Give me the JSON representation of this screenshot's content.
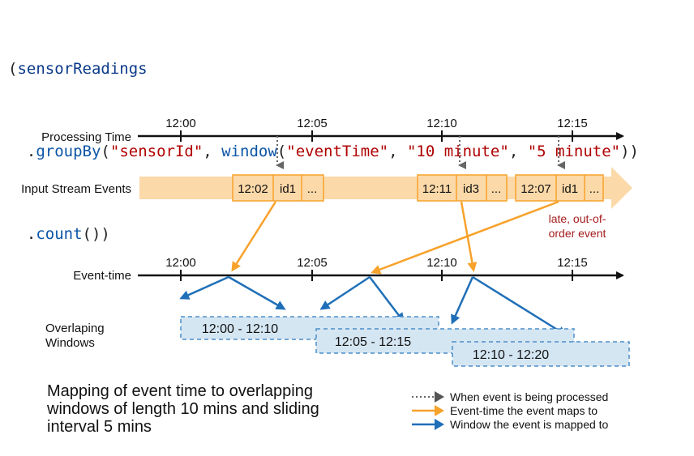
{
  "code": {
    "line1": {
      "open": "(",
      "obj": "sensorReadings"
    },
    "line2": {
      "dot": ".",
      "fn": "groupBy",
      "p1": "(",
      "arg1": "\"sensorId\"",
      "comma": ", ",
      "fn2": "window",
      "p2": "(",
      "arg2": "\"eventTime\"",
      "comma2": ", ",
      "arg3": "\"10 minute\"",
      "comma3": ", ",
      "arg4": "\"5 minute\"",
      "close": "))"
    },
    "line3": {
      "dot": ".",
      "fn": "count",
      "close": "())"
    }
  },
  "diagram": {
    "processing_time_label": "Processing Time",
    "input_stream_label": "Input Stream Events",
    "event_time_label": "Event-time",
    "overlapping_label_1": "Overlaping",
    "overlapping_label_2": "Windows",
    "processing_ticks": [
      "12:00",
      "12:05",
      "12:10",
      "12:15"
    ],
    "event_ticks": [
      "12:00",
      "12:05",
      "12:10",
      "12:15"
    ],
    "events": [
      {
        "time": "12:02",
        "id": "id1",
        "more": "..."
      },
      {
        "time": "12:11",
        "id": "id3",
        "more": "..."
      },
      {
        "time": "12:07",
        "id": "id1",
        "more": "..."
      }
    ],
    "late_note_1": "late, out-of-",
    "late_note_2": "order event",
    "windows": [
      "12:00 - 12:10",
      "12:05 - 12:15",
      "12:10 - 12:20"
    ]
  },
  "legend": {
    "processed": "When event is being processed",
    "maps_to": "Event-time the event maps to",
    "window": "Window the event is mapped to"
  },
  "caption": "Mapping of event time to overlapping windows of length 10 mins and sliding interval 5 mins",
  "colors": {
    "orange": "#f7a22b",
    "orange_light": "#fcd9a8",
    "blue": "#1f6fb8",
    "window_fill": "#d5e6f3",
    "late_red": "#a51c1c"
  }
}
